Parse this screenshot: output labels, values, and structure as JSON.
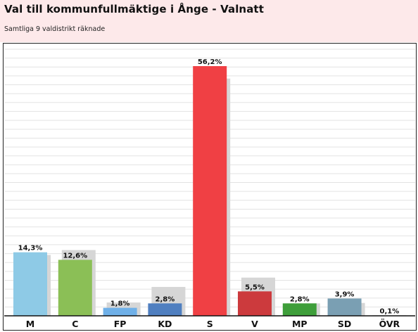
{
  "header": {
    "title": "Val till kommunfullmäktige i Ånge - Valnatt",
    "subtitle": "Samtliga 9 valdistrikt räknade"
  },
  "colors": {
    "header_bg": "#fde9ea",
    "previous_election_bar": "#d6d6d6",
    "gridline": "#e3e3e3"
  },
  "chart_data": {
    "type": "bar",
    "title": "Val till kommunfullmäktige i Ånge - Valnatt",
    "subtitle": "Samtliga 9 valdistrikt räknade",
    "categories": [
      "M",
      "C",
      "FP",
      "KD",
      "S",
      "V",
      "MP",
      "SD",
      "ÖVR"
    ],
    "ylim": [
      0,
      60
    ],
    "grid": true,
    "series": [
      {
        "values": [
          14.3,
          12.6,
          1.8,
          2.8,
          56.2,
          5.5,
          2.8,
          3.9,
          0.1
        ],
        "labels": [
          "14,3%",
          "12,6%",
          "1,8%",
          "2,8%",
          "56,2%",
          "5,5%",
          "2,8%",
          "3,9%",
          "0,1%"
        ],
        "colors": [
          "#8ecae6",
          "#8bbf56",
          "#6fb0e8",
          "#4f7fc0",
          "#f04044",
          "#cc3a3d",
          "#3e9e3a",
          "#7a9fb3",
          "#9a9a9a"
        ]
      },
      {
        "values": [
          13.7,
          14.8,
          3.0,
          6.5,
          53.4,
          8.6,
          2.8,
          2.9,
          0.0
        ]
      }
    ]
  }
}
